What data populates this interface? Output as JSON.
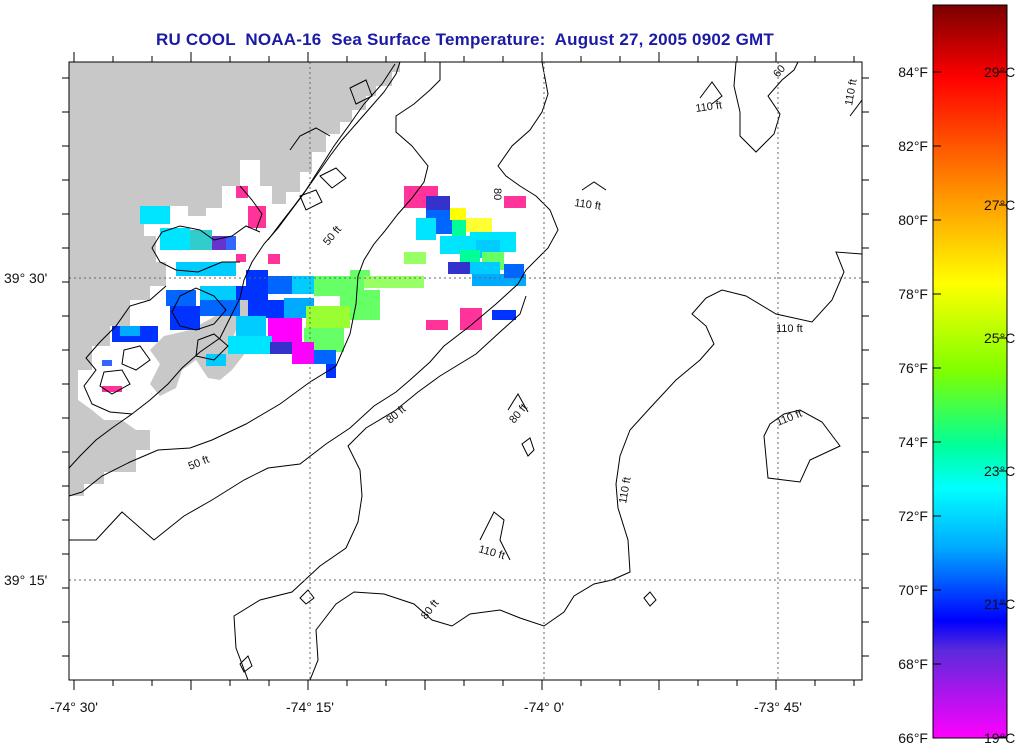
{
  "title": "RU COOL  NOAA-16  Sea Surface Temperature:  August 27, 2005 0902 GMT",
  "map": {
    "lon_ticks": [
      "-74° 30'",
      "-74° 15'",
      "-74° 0'",
      "-73° 45'"
    ],
    "lat_ticks": [
      "39° 30'",
      "39° 15'"
    ],
    "land_color": "#c8c8c8",
    "grid": "dotted"
  },
  "contours": {
    "label_50": "50 ft",
    "label_80": "80 ft",
    "label_110": "110 ft",
    "label_60": "60",
    "label_80_short": "80"
  },
  "colorbar": {
    "fahrenheit": [
      "84°F",
      "82°F",
      "80°F",
      "78°F",
      "76°F",
      "74°F",
      "72°F",
      "70°F",
      "68°F",
      "66°F"
    ],
    "celsius": [
      "29°C",
      "27°C",
      "25°C",
      "23°C",
      "21°C",
      "19°C"
    ],
    "gradient": [
      "#7a0000",
      "#ff0000",
      "#ff8c00",
      "#ffff00",
      "#7fff00",
      "#00ff99",
      "#00ffff",
      "#00aaff",
      "#0000ff",
      "#5a2adb",
      "#ff00ff"
    ]
  }
}
